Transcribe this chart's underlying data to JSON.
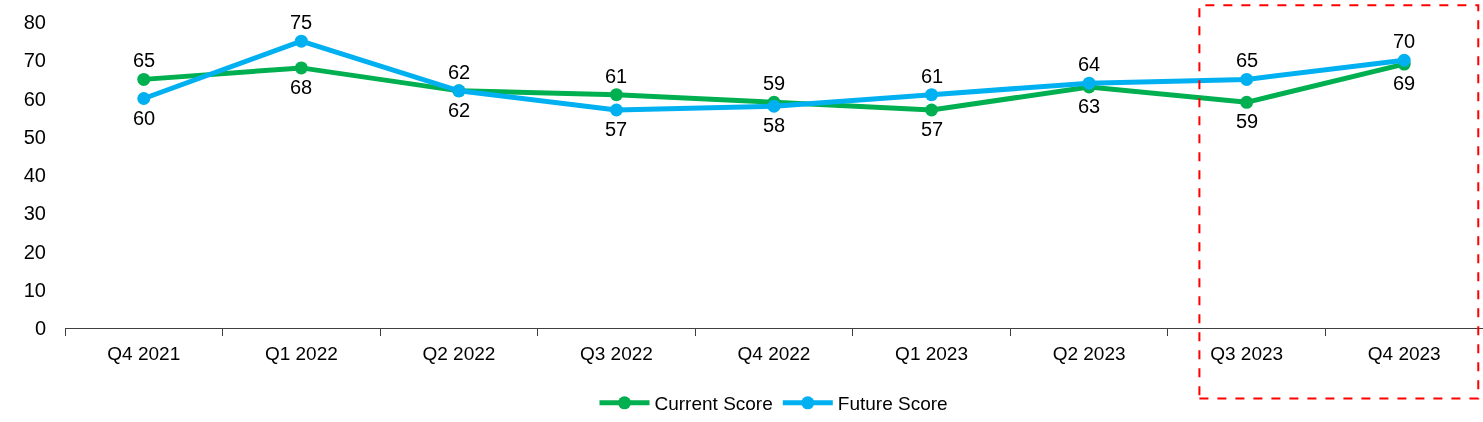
{
  "chart_data": {
    "type": "line",
    "categories": [
      "Q4 2021",
      "Q1 2022",
      "Q2 2022",
      "Q3 2022",
      "Q4 2022",
      "Q1 2023",
      "Q2 2023",
      "Q3 2023",
      "Q4 2023"
    ],
    "series": [
      {
        "name": "Current Score",
        "color": "#00b050",
        "values": [
          65,
          68,
          62,
          61,
          59,
          57,
          63,
          59,
          69
        ]
      },
      {
        "name": "Future Score",
        "color": "#00b0f0",
        "values": [
          60,
          75,
          62,
          57,
          58,
          61,
          64,
          65,
          70
        ]
      }
    ],
    "ylim": [
      0,
      80
    ],
    "yticks": [
      0,
      10,
      20,
      30,
      40,
      50,
      60,
      70,
      80
    ],
    "data_labels": true,
    "legend": "bottom",
    "marker": "circle",
    "line_style": "solid"
  }
}
